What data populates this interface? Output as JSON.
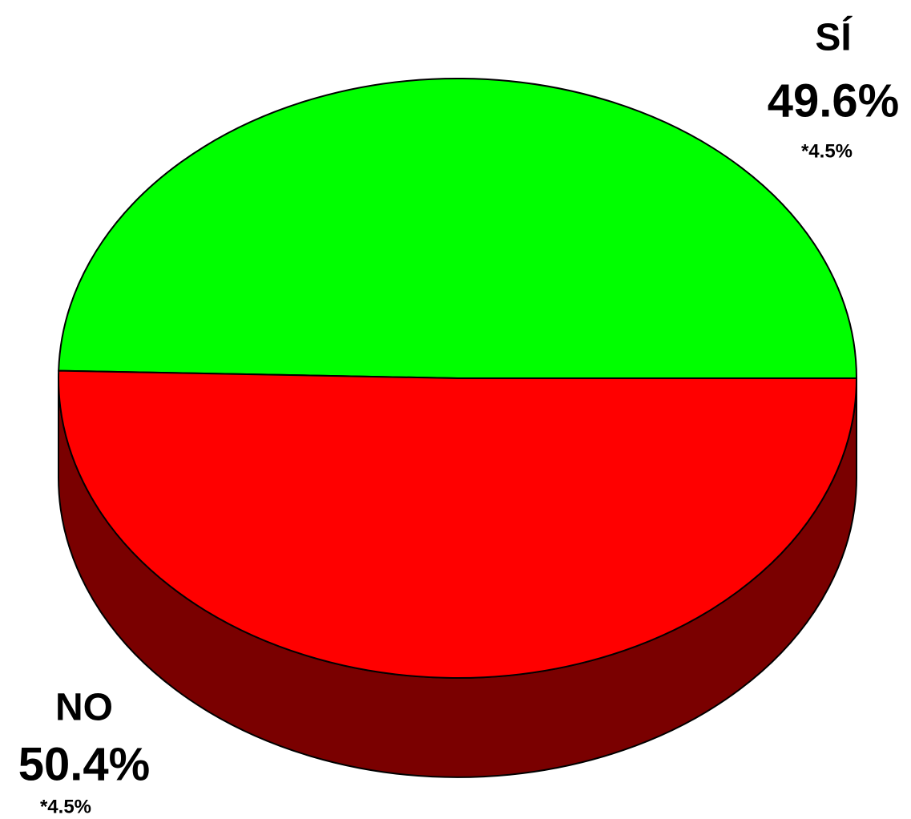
{
  "chart_data": {
    "type": "pie3d",
    "categories": [
      "SÍ",
      "NO"
    ],
    "values": [
      49.6,
      50.4
    ],
    "value_labels": [
      "49.6%",
      "50.4%"
    ],
    "margin_labels": [
      "*4.5%",
      "*4.5%"
    ],
    "colors": [
      "#00ff00",
      "#ff0000"
    ],
    "depth_colors": [
      "#007a00",
      "#7a0000"
    ]
  }
}
